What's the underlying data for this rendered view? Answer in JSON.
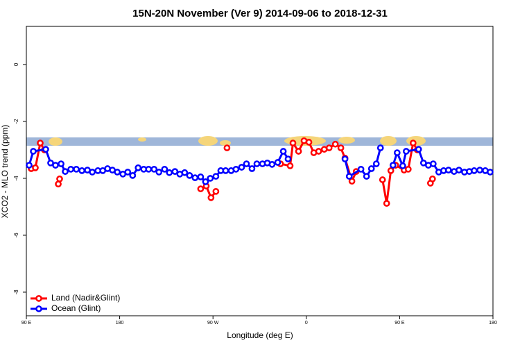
{
  "chart_data": {
    "type": "line",
    "title": "15N-20N November (Ver 9)   2014-09-06 to 2018-12-31",
    "x_label": "Longitude (deg E)",
    "y_label": "XCO2 - MLO trend (ppm)",
    "xlim": [
      90,
      540
    ],
    "ylim": [
      -8.83,
      1.34
    ],
    "xticks": [
      {
        "value": 90,
        "label": "90 E"
      },
      {
        "value": 180,
        "label": "180"
      },
      {
        "value": 270,
        "label": "90 W"
      },
      {
        "value": 360,
        "label": "0"
      },
      {
        "value": 450,
        "label": "90 E"
      },
      {
        "value": 540,
        "label": "180"
      }
    ],
    "yticks": [
      -8,
      -6,
      -4,
      -2,
      0
    ],
    "legend": "bottom-left",
    "series": [
      {
        "name": "Land (Nadir&Glint)",
        "color": "#ff0000",
        "x": [
          94.7,
          98.7,
          103.4,
          107.4,
          null,
          120.8,
          122.1,
          null,
          258.1,
          263.5,
          268.1,
          272.8,
          null,
          283.5,
          null,
          335.1,
          344.4,
          347.1,
          352.5,
          357.8,
          362.5,
          367.2,
          371.9,
          377.3,
          382.0,
          388.0,
          393.3,
          397.3,
          404.0,
          408.1,
          null,
          433.5,
          437.5,
          441.5,
          446.2,
          454.3,
          458.3,
          463.0,
          467.0,
          null,
          479.7,
          481.7
        ],
        "values": [
          -3.66,
          -3.63,
          -2.76,
          -3.0,
          null,
          -4.2,
          -4.02,
          null,
          -4.37,
          -4.27,
          -4.68,
          -4.46,
          null,
          -2.93,
          null,
          -3.49,
          -3.56,
          -2.76,
          -3.05,
          -2.68,
          -2.73,
          -3.1,
          -3.05,
          -2.98,
          -2.93,
          -2.8,
          -2.93,
          -3.29,
          -4.1,
          -3.76,
          null,
          -4.05,
          -4.88,
          -3.73,
          -3.54,
          -3.71,
          -3.68,
          -2.76,
          -3.0,
          null,
          -4.17,
          -4.02
        ]
      },
      {
        "name": "Ocean (Glint)",
        "color": "#0000ff",
        "x": [
          92.7,
          96.7,
          108.7,
          113.4,
          118.1,
          123.5,
          127.5,
          132.9,
          138.2,
          143.6,
          148.9,
          153.6,
          159.0,
          163.7,
          168.3,
          173.0,
          177.7,
          183.1,
          187.8,
          192.5,
          197.8,
          203.2,
          207.9,
          213.2,
          217.9,
          223.3,
          227.9,
          233.3,
          238.0,
          242.7,
          247.4,
          252.7,
          258.1,
          262.8,
          267.4,
          272.8,
          277.5,
          282.2,
          287.5,
          292.2,
          297.6,
          302.3,
          307.6,
          312.3,
          317.7,
          322.4,
          327.0,
          332.4,
          337.8,
          342.4,
          null,
          397.3,
          401.4,
          412.7,
          418.1,
          422.8,
          427.5,
          431.5,
          null,
          443.6,
          447.6,
          453.0,
          456.3,
          468.3,
          473.0,
          477.7,
          482.4,
          487.7,
          492.4,
          497.1,
          502.5,
          507.2,
          512.5,
          517.2,
          521.9,
          527.3,
          532.6,
          537.3
        ],
        "values": [
          -3.54,
          -3.05,
          -2.98,
          -3.46,
          -3.54,
          -3.49,
          -3.76,
          -3.68,
          -3.68,
          -3.73,
          -3.71,
          -3.78,
          -3.73,
          -3.73,
          -3.66,
          -3.71,
          -3.78,
          -3.85,
          -3.78,
          -3.9,
          -3.63,
          -3.68,
          -3.68,
          -3.68,
          -3.78,
          -3.68,
          -3.8,
          -3.76,
          -3.85,
          -3.8,
          -3.9,
          -3.98,
          -3.95,
          -4.12,
          -4.0,
          -3.93,
          -3.73,
          -3.73,
          -3.73,
          -3.68,
          -3.61,
          -3.49,
          -3.66,
          -3.49,
          -3.49,
          -3.46,
          -3.51,
          -3.44,
          -3.05,
          -3.32,
          null,
          -3.32,
          -3.93,
          -3.68,
          -3.93,
          -3.66,
          -3.49,
          -2.93,
          null,
          -3.54,
          -3.1,
          -3.56,
          -3.05,
          -2.98,
          -3.46,
          -3.54,
          -3.49,
          -3.78,
          -3.73,
          -3.71,
          -3.76,
          -3.71,
          -3.78,
          -3.76,
          -3.73,
          -3.71,
          -3.73,
          -3.78
        ]
      }
    ]
  }
}
